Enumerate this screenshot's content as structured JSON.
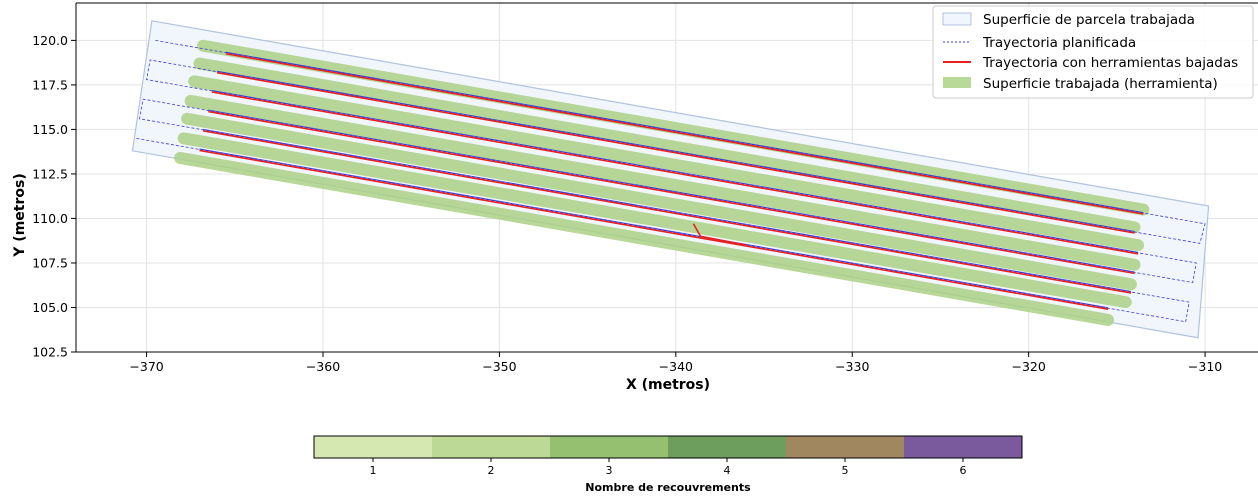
{
  "chart_data": [
    {
      "type": "line",
      "title": "",
      "xlabel": "X (metros)",
      "ylabel": "Y (metros)",
      "xlim": [
        -374,
        -307
      ],
      "ylim": [
        102.5,
        122.1
      ],
      "xticks": [
        -370,
        -360,
        -350,
        -340,
        -330,
        -320,
        -310
      ],
      "xtick_labels": [
        "−370",
        "−360",
        "−350",
        "−340",
        "−330",
        "−320",
        "−310"
      ],
      "yticks": [
        102.5,
        105.0,
        107.5,
        110.0,
        112.5,
        115.0,
        117.5,
        120.0
      ],
      "ytick_labels": [
        "102.5",
        "105.0",
        "107.5",
        "110.0",
        "112.5",
        "115.0",
        "117.5",
        "120.0"
      ],
      "grid": true,
      "legend_position": "top-right",
      "legend": [
        "Superficie de parcela trabajada",
        "Trayectoria planificada",
        "Trayectoria con herramientas bajadas",
        "Superficie trabajada (herramienta)"
      ],
      "colors": {
        "parcel_fill": "#f1f5fc",
        "parcel_edge": "#b0c4de",
        "planned": "#3b3bd9",
        "actual": "#e82020",
        "worked": "#a8d080"
      },
      "parcel_polygon": [
        [
          -369.7,
          121.1
        ],
        [
          -309.8,
          110.7
        ],
        [
          -310.4,
          103.3
        ],
        [
          -370.8,
          113.8
        ]
      ],
      "passes": [
        {
          "start": [
            -369.5,
            120.0
          ],
          "end": [
            -310.0,
            109.7
          ],
          "tool_from": -365.5,
          "tool_to": -313.5
        },
        {
          "start": [
            -369.8,
            118.9
          ],
          "end": [
            -310.3,
            108.6
          ],
          "tool_from": -366.0,
          "tool_to": -314.0
        },
        {
          "start": [
            -370.0,
            117.8
          ],
          "end": [
            -310.5,
            107.5
          ],
          "tool_from": -366.3,
          "tool_to": -313.8
        },
        {
          "start": [
            -370.2,
            116.7
          ],
          "end": [
            -310.7,
            106.4
          ],
          "tool_from": -366.5,
          "tool_to": -314.0
        },
        {
          "start": [
            -370.4,
            115.6
          ],
          "end": [
            -310.9,
            105.3
          ],
          "tool_from": -366.8,
          "tool_to": -314.2
        },
        {
          "start": [
            -370.6,
            114.5
          ],
          "end": [
            -311.1,
            104.2
          ],
          "tool_from": -367.0,
          "tool_to": -315.5
        }
      ],
      "bands": [
        {
          "start": [
            -366.8,
            119.7
          ],
          "end": [
            -313.5,
            110.5
          ]
        },
        {
          "start": [
            -367.0,
            118.7
          ],
          "end": [
            -314.0,
            109.5
          ]
        },
        {
          "start": [
            -367.3,
            117.7
          ],
          "end": [
            -313.8,
            108.5
          ]
        },
        {
          "start": [
            -367.5,
            116.6
          ],
          "end": [
            -314.0,
            107.4
          ]
        },
        {
          "start": [
            -367.7,
            115.6
          ],
          "end": [
            -314.2,
            106.3
          ]
        },
        {
          "start": [
            -367.9,
            114.5
          ],
          "end": [
            -314.5,
            105.3
          ]
        },
        {
          "start": [
            -368.1,
            113.4
          ],
          "end": [
            -315.5,
            104.3
          ]
        }
      ],
      "stray_segment": [
        [
          -339.0,
          109.7
        ],
        [
          -338.6,
          109.0
        ],
        [
          -336.0,
          108.5
        ]
      ]
    },
    {
      "type": "heatmap",
      "xlabel": "Nombre de recouvrements",
      "categories": [
        "1",
        "2",
        "3",
        "4",
        "5",
        "6"
      ],
      "colors": [
        "#d6e8b2",
        "#bcd995",
        "#94c070",
        "#6e9e5e",
        "#a08760",
        "#7a5a9c"
      ]
    }
  ]
}
